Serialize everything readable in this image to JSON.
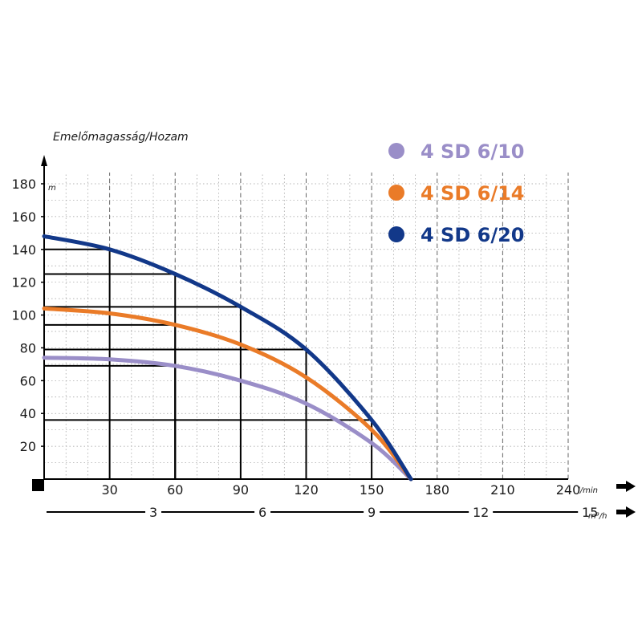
{
  "chart_data": {
    "type": "line",
    "title": "Emelőmagasság/Hozam",
    "xlabel": "",
    "ylabel": "",
    "y_unit": "m",
    "x_unit": "l/min",
    "x2_unit": "m³/h",
    "xlim": [
      0,
      240
    ],
    "ylim": [
      0,
      180
    ],
    "x_ticks": [
      "30",
      "60",
      "90",
      "120",
      "150",
      "180",
      "210",
      "240"
    ],
    "y_ticks": [
      "20",
      "40",
      "60",
      "80",
      "100",
      "120",
      "140",
      "160",
      "180"
    ],
    "x2_ticks": [
      {
        "label": "3",
        "lpm": 50
      },
      {
        "label": "6",
        "lpm": 100
      },
      {
        "label": "9",
        "lpm": 150
      },
      {
        "label": "12",
        "lpm": 200
      },
      {
        "label": "15",
        "lpm": 250
      }
    ],
    "grid": true,
    "legend_position": "top-right",
    "series": [
      {
        "name": "4 SD 6/10",
        "color": "#9a8ec8",
        "x": [
          0,
          30,
          60,
          90,
          120,
          150,
          168
        ],
        "y": [
          74,
          73,
          69,
          60,
          46,
          22,
          0
        ]
      },
      {
        "name": "4 SD 6/14",
        "color": "#ea7b28",
        "x": [
          0,
          30,
          60,
          90,
          120,
          150,
          168
        ],
        "y": [
          104,
          101,
          94,
          82,
          62,
          30,
          0
        ]
      },
      {
        "name": "4 SD 6/20",
        "color": "#123889",
        "x": [
          0,
          30,
          60,
          90,
          120,
          150,
          168
        ],
        "y": [
          148,
          140,
          125,
          105,
          79,
          36,
          0
        ]
      }
    ],
    "highlight_points": [
      {
        "series": "4 SD 6/10",
        "x": 60,
        "y": 69
      },
      {
        "series": "4 SD 6/14",
        "x": 60,
        "y": 94
      },
      {
        "series": "4 SD 6/20",
        "x": 30,
        "y": 140
      },
      {
        "series": "4 SD 6/20",
        "x": 60,
        "y": 125
      },
      {
        "series": "4 SD 6/20",
        "x": 90,
        "y": 105
      },
      {
        "series": "4 SD 6/20",
        "x": 120,
        "y": 79
      },
      {
        "series": "4 SD 6/20",
        "x": 150,
        "y": 36
      }
    ]
  }
}
